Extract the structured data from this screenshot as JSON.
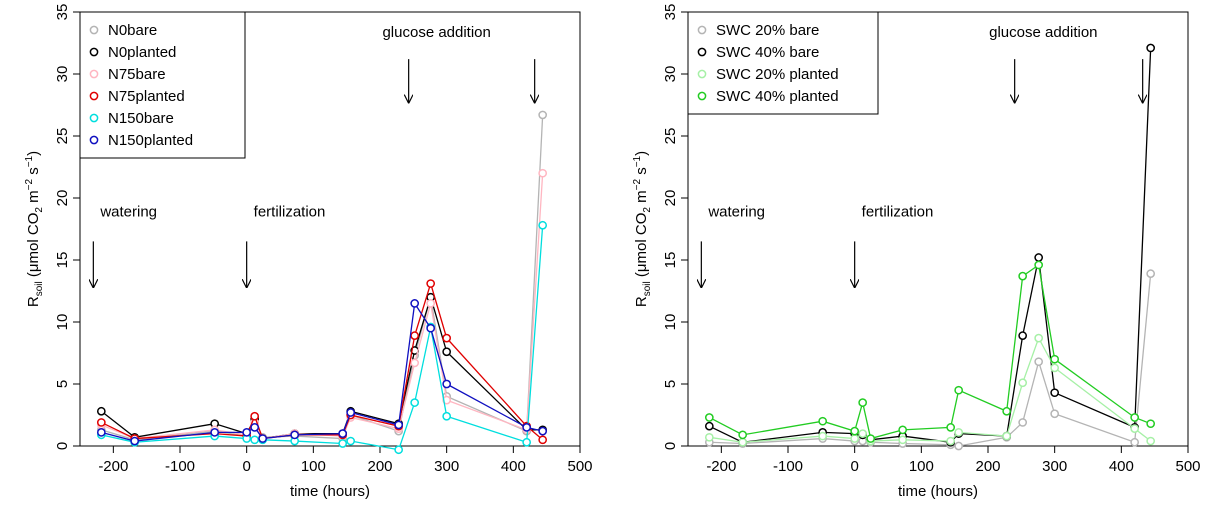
{
  "chart_data": [
    {
      "type": "line",
      "xlabel": "time (hours)",
      "ylabel_main": "R",
      "ylabel_sub": "soil",
      "ylabel_units_prefix": " (μmol CO",
      "ylabel_units_sub": "2",
      "ylabel_units_mid": " m",
      "ylabel_units_sup1": "−2",
      "ylabel_units_mid2": " s",
      "ylabel_units_sup2": "−1",
      "ylabel_units_suffix": ")",
      "xlim": [
        -250,
        500
      ],
      "ylim": [
        0,
        35
      ],
      "xticks": [
        -200,
        -100,
        0,
        100,
        200,
        300,
        400,
        500
      ],
      "xtick_labels": [
        "-200",
        "-100",
        "0",
        "100",
        "200",
        "300",
        "400",
        "500"
      ],
      "yticks": [
        0,
        5,
        10,
        15,
        20,
        25,
        30,
        35
      ],
      "ytick_labels": [
        "0",
        "5",
        "10",
        "15",
        "20",
        "25",
        "30",
        "35"
      ],
      "legend_position": "top-left",
      "annotations": [
        {
          "text": "watering",
          "x": -230,
          "y_text": 18.5,
          "y_arrow_top": 16.5,
          "y_arrow_tip": 12.8
        },
        {
          "text": "fertilization",
          "x": 0,
          "y_text": 18.5,
          "y_arrow_top": 16.5,
          "y_arrow_tip": 12.8
        },
        {
          "text": "glucose addition",
          "x": 243,
          "y_text": 33.0,
          "y_arrow_top": 31.2,
          "y_arrow_tip": 27.7,
          "text_x": 285
        },
        {
          "text": "",
          "x": 432,
          "y_text": 0,
          "y_arrow_top": 31.2,
          "y_arrow_tip": 27.7
        }
      ],
      "series": [
        {
          "name": "N0bare",
          "color": "#b4b4b4",
          "x": [
            -218,
            -168,
            -48,
            0,
            12,
            24,
            72,
            144,
            156,
            228,
            252,
            276,
            300,
            420,
            444
          ],
          "y": [
            1.3,
            0.5,
            1.2,
            0.8,
            2.1,
            0.7,
            0.8,
            0.6,
            2.5,
            1.2,
            7.3,
            12.0,
            4.0,
            1.2,
            26.7
          ]
        },
        {
          "name": "N0planted",
          "color": "#000000",
          "x": [
            -218,
            -168,
            -48,
            0,
            12,
            24,
            72,
            144,
            156,
            228,
            252,
            276,
            300,
            420,
            444
          ],
          "y": [
            2.8,
            0.7,
            1.8,
            1.0,
            2.2,
            0.6,
            1.0,
            1.0,
            2.8,
            1.8,
            7.7,
            12.0,
            7.6,
            1.3,
            1.3
          ]
        },
        {
          "name": "N75bare",
          "color": "#ffb6c1",
          "x": [
            -218,
            -168,
            -48,
            0,
            12,
            24,
            72,
            144,
            156,
            228,
            252,
            276,
            300,
            420,
            444
          ],
          "y": [
            1.7,
            0.6,
            1.3,
            0.9,
            1.9,
            0.6,
            1.0,
            0.8,
            2.3,
            1.4,
            6.7,
            11.5,
            3.7,
            1.3,
            22.0
          ]
        },
        {
          "name": "N75planted",
          "color": "#e00000",
          "x": [
            -218,
            -168,
            -48,
            0,
            12,
            24,
            72,
            144,
            156,
            228,
            252,
            276,
            300,
            420,
            444
          ],
          "y": [
            1.9,
            0.6,
            1.0,
            0.8,
            2.4,
            0.6,
            0.9,
            0.9,
            2.5,
            1.6,
            8.9,
            13.1,
            8.7,
            1.6,
            0.5
          ]
        },
        {
          "name": "N150bare",
          "color": "#00dede",
          "x": [
            -218,
            -168,
            -48,
            0,
            12,
            24,
            72,
            144,
            156,
            228,
            252,
            276,
            300,
            420,
            444
          ],
          "y": [
            0.9,
            0.3,
            0.8,
            0.6,
            0.5,
            0.5,
            0.4,
            0.2,
            0.4,
            -0.3,
            3.5,
            9.6,
            2.4,
            0.3,
            17.8
          ]
        },
        {
          "name": "N150planted",
          "color": "#1010c0",
          "x": [
            -218,
            -168,
            -48,
            0,
            12,
            24,
            72,
            144,
            156,
            228,
            252,
            276,
            300,
            420,
            444
          ],
          "y": [
            1.1,
            0.4,
            1.1,
            1.1,
            1.5,
            0.6,
            0.9,
            1.0,
            2.7,
            1.7,
            11.5,
            9.5,
            5.0,
            1.5,
            1.2
          ]
        }
      ]
    },
    {
      "type": "line",
      "xlabel": "time (hours)",
      "ylabel_main": "R",
      "ylabel_sub": "soil",
      "ylabel_units_prefix": " (μmol CO",
      "ylabel_units_sub": "2",
      "ylabel_units_mid": " m",
      "ylabel_units_sup1": "−2",
      "ylabel_units_mid2": " s",
      "ylabel_units_sup2": "−1",
      "ylabel_units_suffix": ")",
      "xlim": [
        -250,
        500
      ],
      "ylim": [
        0,
        35
      ],
      "xticks": [
        -200,
        -100,
        0,
        100,
        200,
        300,
        400,
        500
      ],
      "xtick_labels": [
        "-200",
        "-100",
        "0",
        "100",
        "200",
        "300",
        "400",
        "500"
      ],
      "yticks": [
        0,
        5,
        10,
        15,
        20,
        25,
        30,
        35
      ],
      "ytick_labels": [
        "0",
        "5",
        "10",
        "15",
        "20",
        "25",
        "30",
        "35"
      ],
      "legend_position": "top-left",
      "annotations": [
        {
          "text": "watering",
          "x": -230,
          "y_text": 18.5,
          "y_arrow_top": 16.5,
          "y_arrow_tip": 12.8
        },
        {
          "text": "fertilization",
          "x": 0,
          "y_text": 18.5,
          "y_arrow_top": 16.5,
          "y_arrow_tip": 12.8
        },
        {
          "text": "glucose addition",
          "x": 240,
          "y_text": 33.0,
          "y_arrow_top": 31.2,
          "y_arrow_tip": 27.7,
          "text_x": 283
        },
        {
          "text": "",
          "x": 432,
          "y_text": 0,
          "y_arrow_top": 31.2,
          "y_arrow_tip": 27.7
        }
      ],
      "series": [
        {
          "name": "SWC 20% bare",
          "color": "#b4b4b4",
          "x": [
            -218,
            -168,
            -48,
            0,
            12,
            24,
            72,
            144,
            156,
            228,
            252,
            276,
            300,
            420,
            444
          ],
          "y": [
            0.3,
            0.2,
            0.6,
            0.4,
            0.4,
            0.3,
            0.2,
            0.1,
            0.0,
            0.7,
            1.9,
            6.8,
            2.6,
            0.3,
            13.9
          ]
        },
        {
          "name": "SWC 40% bare",
          "color": "#000000",
          "x": [
            -218,
            -168,
            -48,
            0,
            12,
            24,
            72,
            144,
            156,
            228,
            252,
            276,
            300,
            420,
            444
          ],
          "y": [
            1.6,
            0.3,
            1.1,
            1.0,
            0.9,
            0.5,
            0.8,
            0.3,
            1.0,
            0.8,
            8.9,
            15.2,
            4.3,
            1.5,
            32.1
          ]
        },
        {
          "name": "SWC 20% planted",
          "color": "#a6f0a6",
          "x": [
            -218,
            -168,
            -48,
            0,
            12,
            24,
            72,
            144,
            156,
            228,
            252,
            276,
            300,
            420,
            444
          ],
          "y": [
            0.7,
            0.3,
            0.8,
            0.6,
            1.0,
            0.4,
            0.5,
            0.4,
            1.1,
            0.8,
            5.1,
            8.7,
            6.3,
            1.4,
            0.4
          ]
        },
        {
          "name": "SWC 40% planted",
          "color": "#22cc22",
          "x": [
            -218,
            -168,
            -48,
            0,
            12,
            24,
            72,
            144,
            156,
            228,
            252,
            276,
            300,
            420,
            444
          ],
          "y": [
            2.3,
            0.9,
            2.0,
            1.2,
            3.5,
            0.6,
            1.3,
            1.5,
            4.5,
            2.8,
            13.7,
            14.6,
            7.0,
            2.3,
            1.8
          ]
        }
      ]
    }
  ]
}
